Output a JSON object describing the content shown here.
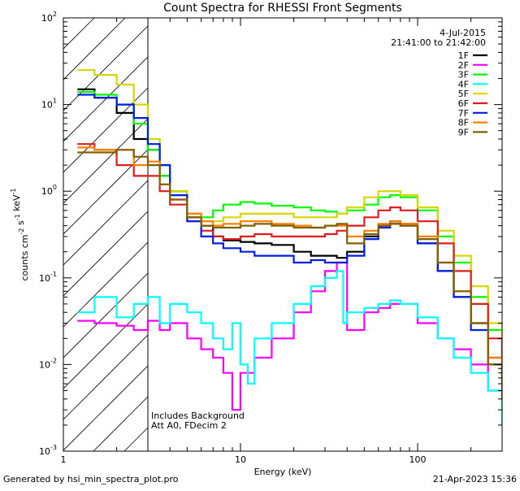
{
  "chart_data": {
    "type": "line",
    "title": "Count Spectra for RHESSI Front Segments",
    "xlabel": "Energy (keV)",
    "ylabel": "counts cm-2 s-1 keV-1",
    "xscale": "log",
    "yscale": "log",
    "xlim": [
      1,
      300
    ],
    "ylim": [
      0.001,
      100
    ],
    "x_ticks": [
      {
        "v": 1,
        "label": "1"
      },
      {
        "v": 10,
        "label": "10"
      },
      {
        "v": 100,
        "label": "100"
      }
    ],
    "y_ticks": [
      {
        "v": 0.001,
        "base": "10",
        "exp": "-3"
      },
      {
        "v": 0.01,
        "base": "10",
        "exp": "-2"
      },
      {
        "v": 0.1,
        "base": "10",
        "exp": "-1"
      },
      {
        "v": 1,
        "base": "10",
        "exp": "0"
      },
      {
        "v": 10,
        "base": "10",
        "exp": "1"
      },
      {
        "v": 100,
        "base": "10",
        "exp": "2"
      }
    ],
    "hatched_region": [
      1,
      3
    ],
    "date": "4-Jul-2015",
    "time_range": "21:41:00 to 21:42:00",
    "annotations": [
      "Includes Background",
      "Att A0, FDecim 2"
    ],
    "legend_position": "top-right",
    "series": [
      {
        "name": "1F",
        "color": "#000000",
        "points": [
          [
            1.2,
            15
          ],
          [
            1.5,
            12
          ],
          [
            2,
            8
          ],
          [
            2.5,
            4
          ],
          [
            3,
            3
          ],
          [
            3.5,
            1.5
          ],
          [
            4,
            1
          ],
          [
            5,
            0.5
          ],
          [
            6,
            0.4
          ],
          [
            7,
            0.3
          ],
          [
            8,
            0.27
          ],
          [
            10,
            0.26
          ],
          [
            12,
            0.25
          ],
          [
            15,
            0.24
          ],
          [
            20,
            0.2
          ],
          [
            25,
            0.18
          ],
          [
            30,
            0.18
          ],
          [
            35,
            0.17
          ],
          [
            40,
            0.2
          ],
          [
            50,
            0.3
          ],
          [
            60,
            0.4
          ],
          [
            70,
            0.45
          ],
          [
            80,
            0.42
          ],
          [
            100,
            0.25
          ],
          [
            130,
            0.12
          ],
          [
            160,
            0.06
          ],
          [
            200,
            0.03
          ],
          [
            250,
            0.012
          ],
          [
            300,
            0.007
          ]
        ]
      },
      {
        "name": "2F",
        "color": "#ff00ff",
        "points": [
          [
            1.2,
            0.032
          ],
          [
            1.5,
            0.03
          ],
          [
            2,
            0.028
          ],
          [
            2.5,
            0.025
          ],
          [
            3,
            0.032
          ],
          [
            3.5,
            0.025
          ],
          [
            4,
            0.03
          ],
          [
            5,
            0.02
          ],
          [
            6,
            0.015
          ],
          [
            7,
            0.012
          ],
          [
            8,
            0.008
          ],
          [
            9,
            0.003
          ],
          [
            10,
            0.008
          ],
          [
            12,
            0.012
          ],
          [
            15,
            0.02
          ],
          [
            20,
            0.04
          ],
          [
            25,
            0.07
          ],
          [
            30,
            0.12
          ],
          [
            35,
            0.15
          ],
          [
            40,
            0.025
          ],
          [
            50,
            0.04
          ],
          [
            60,
            0.045
          ],
          [
            70,
            0.05
          ],
          [
            80,
            0.05
          ],
          [
            100,
            0.03
          ],
          [
            130,
            0.02
          ],
          [
            160,
            0.015
          ],
          [
            200,
            0.01
          ],
          [
            250,
            0.005
          ],
          [
            300,
            0.003
          ]
        ]
      },
      {
        "name": "3F",
        "color": "#00ff00",
        "points": [
          [
            1.2,
            14
          ],
          [
            1.5,
            13
          ],
          [
            2,
            10
          ],
          [
            2.5,
            6
          ],
          [
            3,
            3
          ],
          [
            3.5,
            1.5
          ],
          [
            4,
            1
          ],
          [
            5,
            0.55
          ],
          [
            6,
            0.5
          ],
          [
            7,
            0.6
          ],
          [
            8,
            0.7
          ],
          [
            10,
            0.75
          ],
          [
            12,
            0.72
          ],
          [
            15,
            0.68
          ],
          [
            20,
            0.65
          ],
          [
            25,
            0.6
          ],
          [
            30,
            0.58
          ],
          [
            35,
            0.55
          ],
          [
            40,
            0.6
          ],
          [
            50,
            0.7
          ],
          [
            60,
            0.85
          ],
          [
            70,
            0.9
          ],
          [
            80,
            0.85
          ],
          [
            100,
            0.6
          ],
          [
            130,
            0.3
          ],
          [
            160,
            0.15
          ],
          [
            200,
            0.06
          ],
          [
            250,
            0.025
          ],
          [
            300,
            0.012
          ]
        ]
      },
      {
        "name": "4F",
        "color": "#00ffff",
        "points": [
          [
            1.2,
            0.04
          ],
          [
            1.5,
            0.06
          ],
          [
            2,
            0.035
          ],
          [
            2.5,
            0.05
          ],
          [
            3,
            0.06
          ],
          [
            3.5,
            0.03
          ],
          [
            4,
            0.05
          ],
          [
            5,
            0.04
          ],
          [
            6,
            0.03
          ],
          [
            7,
            0.02
          ],
          [
            8,
            0.015
          ],
          [
            9,
            0.03
          ],
          [
            10,
            0.01
          ],
          [
            11,
            0.006
          ],
          [
            12,
            0.02
          ],
          [
            15,
            0.03
          ],
          [
            20,
            0.05
          ],
          [
            25,
            0.08
          ],
          [
            30,
            0.1
          ],
          [
            35,
            0.12
          ],
          [
            38,
            0.03
          ],
          [
            40,
            0.04
          ],
          [
            50,
            0.045
          ],
          [
            60,
            0.05
          ],
          [
            70,
            0.055
          ],
          [
            80,
            0.05
          ],
          [
            100,
            0.035
          ],
          [
            130,
            0.02
          ],
          [
            160,
            0.012
          ],
          [
            200,
            0.008
          ],
          [
            250,
            0.005
          ],
          [
            300,
            0.002
          ]
        ]
      },
      {
        "name": "5F",
        "color": "#d6d600",
        "points": [
          [
            1.2,
            25
          ],
          [
            1.5,
            22
          ],
          [
            2,
            17
          ],
          [
            2.5,
            10
          ],
          [
            3,
            4
          ],
          [
            3.5,
            2
          ],
          [
            4,
            1
          ],
          [
            5,
            0.55
          ],
          [
            6,
            0.45
          ],
          [
            7,
            0.45
          ],
          [
            8,
            0.5
          ],
          [
            10,
            0.55
          ],
          [
            12,
            0.55
          ],
          [
            15,
            0.55
          ],
          [
            20,
            0.5
          ],
          [
            25,
            0.5
          ],
          [
            30,
            0.5
          ],
          [
            35,
            0.55
          ],
          [
            40,
            0.65
          ],
          [
            50,
            0.85
          ],
          [
            60,
            1.0
          ],
          [
            70,
            1.0
          ],
          [
            80,
            0.9
          ],
          [
            100,
            0.65
          ],
          [
            130,
            0.35
          ],
          [
            160,
            0.18
          ],
          [
            200,
            0.08
          ],
          [
            250,
            0.03
          ],
          [
            300,
            0.015
          ]
        ]
      },
      {
        "name": "6F",
        "color": "#e01c1c",
        "points": [
          [
            1.2,
            3.5
          ],
          [
            1.5,
            3
          ],
          [
            2,
            2
          ],
          [
            2.5,
            1.5
          ],
          [
            3,
            1.5
          ],
          [
            3.5,
            1
          ],
          [
            4,
            0.7
          ],
          [
            5,
            0.45
          ],
          [
            6,
            0.35
          ],
          [
            7,
            0.3
          ],
          [
            8,
            0.28
          ],
          [
            10,
            0.3
          ],
          [
            12,
            0.32
          ],
          [
            15,
            0.3
          ],
          [
            20,
            0.3
          ],
          [
            25,
            0.3
          ],
          [
            30,
            0.32
          ],
          [
            35,
            0.35
          ],
          [
            40,
            0.4
          ],
          [
            50,
            0.5
          ],
          [
            60,
            0.6
          ],
          [
            70,
            0.65
          ],
          [
            80,
            0.6
          ],
          [
            100,
            0.45
          ],
          [
            130,
            0.25
          ],
          [
            160,
            0.12
          ],
          [
            200,
            0.05
          ],
          [
            250,
            0.02
          ],
          [
            300,
            0.01
          ]
        ]
      },
      {
        "name": "7F",
        "color": "#0020e0",
        "points": [
          [
            1.2,
            13
          ],
          [
            1.5,
            12
          ],
          [
            2,
            10
          ],
          [
            2.5,
            7
          ],
          [
            3,
            3.5
          ],
          [
            3.5,
            2
          ],
          [
            4,
            0.9
          ],
          [
            5,
            0.45
          ],
          [
            6,
            0.3
          ],
          [
            7,
            0.25
          ],
          [
            8,
            0.22
          ],
          [
            10,
            0.2
          ],
          [
            12,
            0.18
          ],
          [
            15,
            0.18
          ],
          [
            20,
            0.15
          ],
          [
            25,
            0.16
          ],
          [
            30,
            0.15
          ],
          [
            35,
            0.15
          ],
          [
            40,
            0.18
          ],
          [
            50,
            0.28
          ],
          [
            60,
            0.38
          ],
          [
            70,
            0.42
          ],
          [
            80,
            0.4
          ],
          [
            100,
            0.25
          ],
          [
            130,
            0.12
          ],
          [
            160,
            0.06
          ],
          [
            200,
            0.025
          ],
          [
            250,
            0.01
          ],
          [
            300,
            0.006
          ]
        ]
      },
      {
        "name": "8F",
        "color": "#ff8000",
        "points": [
          [
            1.2,
            3.2
          ],
          [
            1.5,
            3
          ],
          [
            2,
            3
          ],
          [
            2.5,
            2
          ],
          [
            3,
            2.2
          ],
          [
            3.5,
            1.2
          ],
          [
            4,
            0.8
          ],
          [
            5,
            0.55
          ],
          [
            6,
            0.45
          ],
          [
            7,
            0.4
          ],
          [
            8,
            0.42
          ],
          [
            10,
            0.45
          ],
          [
            12,
            0.45
          ],
          [
            15,
            0.42
          ],
          [
            20,
            0.4
          ],
          [
            25,
            0.38
          ],
          [
            30,
            0.4
          ],
          [
            35,
            0.4
          ],
          [
            40,
            0.3
          ],
          [
            50,
            0.35
          ],
          [
            60,
            0.42
          ],
          [
            70,
            0.45
          ],
          [
            80,
            0.42
          ],
          [
            100,
            0.3
          ],
          [
            130,
            0.15
          ],
          [
            160,
            0.07
          ],
          [
            200,
            0.03
          ],
          [
            250,
            0.012
          ],
          [
            300,
            0.006
          ]
        ]
      },
      {
        "name": "9F",
        "color": "#806000",
        "points": [
          [
            1.2,
            2.8
          ],
          [
            1.5,
            2.8
          ],
          [
            2,
            3
          ],
          [
            2.5,
            2.5
          ],
          [
            3,
            2
          ],
          [
            3.5,
            1.2
          ],
          [
            4,
            0.8
          ],
          [
            5,
            0.5
          ],
          [
            6,
            0.4
          ],
          [
            7,
            0.38
          ],
          [
            8,
            0.38
          ],
          [
            10,
            0.4
          ],
          [
            12,
            0.42
          ],
          [
            15,
            0.4
          ],
          [
            20,
            0.38
          ],
          [
            25,
            0.38
          ],
          [
            30,
            0.4
          ],
          [
            35,
            0.42
          ],
          [
            40,
            0.25
          ],
          [
            50,
            0.32
          ],
          [
            60,
            0.4
          ],
          [
            70,
            0.42
          ],
          [
            80,
            0.4
          ],
          [
            100,
            0.28
          ],
          [
            130,
            0.15
          ],
          [
            160,
            0.07
          ],
          [
            200,
            0.03
          ],
          [
            250,
            0.01
          ],
          [
            300,
            0.004
          ]
        ]
      }
    ]
  },
  "footer": {
    "generated_by": "Generated by hsi_min_spectra_plot.pro",
    "timestamp": "21-Apr-2023 15:36"
  }
}
